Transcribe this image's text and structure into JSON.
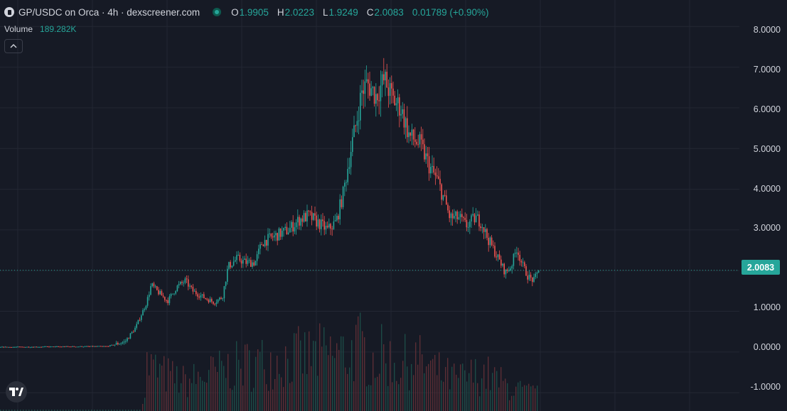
{
  "header": {
    "title": "GP/USDC on Orca · 4h · dexscreener.com",
    "ohlc": [
      {
        "key": "O",
        "value": "1.9905"
      },
      {
        "key": "H",
        "value": "2.0223"
      },
      {
        "key": "L",
        "value": "1.9249"
      },
      {
        "key": "C",
        "value": "2.0083"
      }
    ],
    "change": "0.01789 (+0.90%)"
  },
  "volume": {
    "label": "Volume",
    "value": "189.282K"
  },
  "price_axis": {
    "labels": [
      "8.0000",
      "7.0000",
      "6.0000",
      "5.0000",
      "4.0000",
      "3.0000",
      "1.0000",
      "0.0000",
      "-1.0000"
    ],
    "current_price": "2.0083"
  },
  "colors": {
    "background": "#161a25",
    "up": "#26a69a",
    "down": "#ef5350",
    "grid": "#232733"
  },
  "icons": {
    "logo": "pair-logo-icon",
    "live": "live-dot-icon",
    "collapse": "chevron-up-icon",
    "brand": "tradingview-logo-icon"
  },
  "chart_data": {
    "type": "candlestick",
    "interval": "4h",
    "y_ticks": [
      8,
      7,
      6,
      5,
      4,
      3,
      2,
      1,
      0,
      -1
    ],
    "ylim": [
      -1.45,
      8.65
    ],
    "last_close": 2.0083,
    "grid": true,
    "price_path": [
      [
        0,
        0.12
      ],
      [
        150,
        0.14
      ],
      [
        175,
        0.25
      ],
      [
        190,
        0.6
      ],
      [
        205,
        1.2
      ],
      [
        212,
        1.65
      ],
      [
        220,
        1.5
      ],
      [
        235,
        1.25
      ],
      [
        248,
        1.6
      ],
      [
        260,
        1.75
      ],
      [
        270,
        1.5
      ],
      [
        285,
        1.35
      ],
      [
        300,
        1.22
      ],
      [
        312,
        1.35
      ],
      [
        320,
        2.1
      ],
      [
        333,
        2.3
      ],
      [
        345,
        2.2
      ],
      [
        358,
        2.2
      ],
      [
        368,
        2.7
      ],
      [
        380,
        2.8
      ],
      [
        392,
        2.9
      ],
      [
        405,
        3.0
      ],
      [
        420,
        3.25
      ],
      [
        433,
        3.35
      ],
      [
        445,
        3.2
      ],
      [
        460,
        3.0
      ],
      [
        472,
        3.2
      ],
      [
        482,
        3.9
      ],
      [
        493,
        5.0
      ],
      [
        500,
        5.6
      ],
      [
        508,
        6.4
      ],
      [
        516,
        6.6
      ],
      [
        528,
        6.3
      ],
      [
        540,
        6.7
      ],
      [
        552,
        6.2
      ],
      [
        563,
        6.0
      ],
      [
        575,
        5.3
      ],
      [
        590,
        5.1
      ],
      [
        605,
        4.5
      ],
      [
        615,
        4.2
      ],
      [
        625,
        3.7
      ],
      [
        632,
        3.3
      ],
      [
        645,
        3.3
      ],
      [
        655,
        3.1
      ],
      [
        668,
        3.3
      ],
      [
        676,
        3.2
      ],
      [
        685,
        2.8
      ],
      [
        697,
        2.4
      ],
      [
        710,
        1.95
      ],
      [
        718,
        2.1
      ],
      [
        726,
        2.55
      ],
      [
        735,
        2.1
      ],
      [
        742,
        1.85
      ],
      [
        750,
        1.75
      ],
      [
        757,
        2.0083
      ]
    ],
    "volume_peaks": [
      [
        205,
        105
      ],
      [
        225,
        85
      ],
      [
        260,
        65
      ],
      [
        320,
        95
      ],
      [
        385,
        115
      ],
      [
        450,
        125
      ],
      [
        490,
        130
      ],
      [
        505,
        145
      ],
      [
        520,
        115
      ],
      [
        540,
        125
      ],
      [
        560,
        100
      ],
      [
        580,
        120
      ],
      [
        610,
        90
      ],
      [
        640,
        70
      ],
      [
        680,
        85
      ],
      [
        720,
        50
      ],
      [
        745,
        40
      ]
    ]
  }
}
